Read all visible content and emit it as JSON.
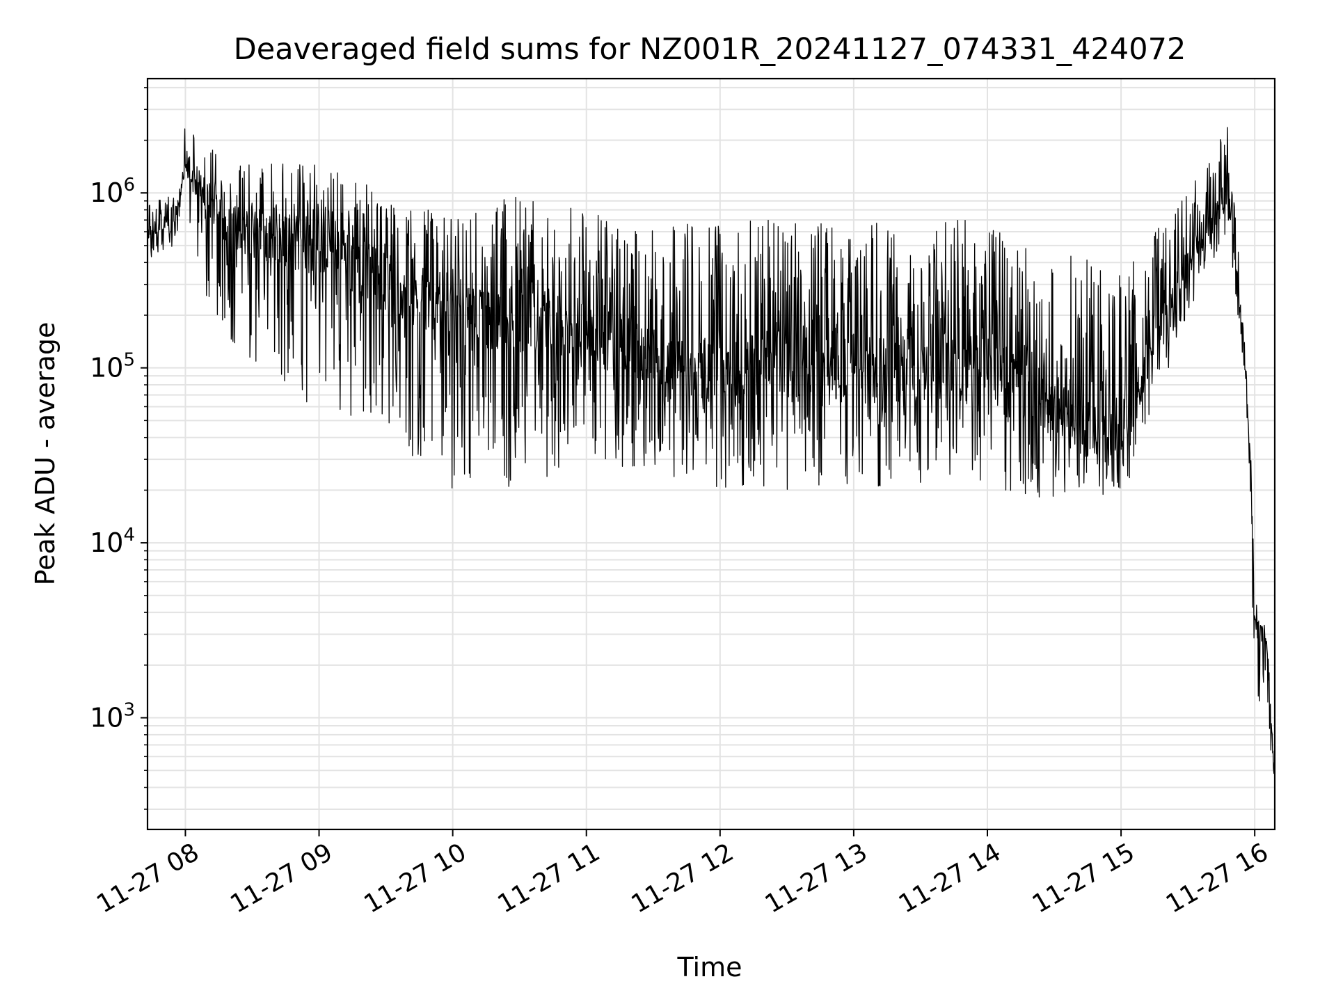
{
  "chart_data": {
    "type": "line",
    "title": "Deaveraged field sums for NZ001R_20241127_074331_424072",
    "xlabel": "Time",
    "ylabel": "Peak ADU - average",
    "yscale": "log",
    "ylim": [
      230,
      4500000
    ],
    "xlim": [
      "2024-11-27 07:43",
      "2024-11-27 16:09"
    ],
    "grid": true,
    "line_color": "#000000",
    "x_ticks": [
      {
        "t": "2024-11-27 08:00",
        "label": "11-27 08"
      },
      {
        "t": "2024-11-27 09:00",
        "label": "11-27 09"
      },
      {
        "t": "2024-11-27 10:00",
        "label": "11-27 10"
      },
      {
        "t": "2024-11-27 11:00",
        "label": "11-27 11"
      },
      {
        "t": "2024-11-27 12:00",
        "label": "11-27 12"
      },
      {
        "t": "2024-11-27 13:00",
        "label": "11-27 13"
      },
      {
        "t": "2024-11-27 14:00",
        "label": "11-27 14"
      },
      {
        "t": "2024-11-27 15:00",
        "label": "11-27 15"
      },
      {
        "t": "2024-11-27 16:00",
        "label": "11-27 16"
      }
    ],
    "y_ticks": [
      {
        "value": 1000,
        "base": "10",
        "exp": "3"
      },
      {
        "value": 10000,
        "base": "10",
        "exp": "4"
      },
      {
        "value": 100000,
        "base": "10",
        "exp": "5"
      },
      {
        "value": 1000000,
        "base": "10",
        "exp": "6"
      }
    ],
    "series": [
      {
        "envelope": [
          {
            "t": "2024-11-27 07:43",
            "base": 600000,
            "low": 420000,
            "high": 900000
          },
          {
            "t": "2024-11-27 07:55",
            "base": 650000,
            "low": 480000,
            "high": 1000000
          },
          {
            "t": "2024-11-27 08:00",
            "base": 1500000,
            "low": 900000,
            "high": 2600000
          },
          {
            "t": "2024-11-27 08:10",
            "base": 800000,
            "low": 200000,
            "high": 1800000
          },
          {
            "t": "2024-11-27 08:30",
            "base": 600000,
            "low": 80000,
            "high": 1500000
          },
          {
            "t": "2024-11-27 09:00",
            "base": 500000,
            "low": 60000,
            "high": 1500000
          },
          {
            "t": "2024-11-27 09:30",
            "base": 300000,
            "low": 40000,
            "high": 1000000
          },
          {
            "t": "2024-11-27 10:00",
            "base": 200000,
            "low": 20000,
            "high": 800000
          },
          {
            "t": "2024-11-27 10:30",
            "base": 200000,
            "low": 20000,
            "high": 1000000
          },
          {
            "t": "2024-11-27 11:00",
            "base": 150000,
            "low": 30000,
            "high": 800000
          },
          {
            "t": "2024-11-27 11:30",
            "base": 120000,
            "low": 25000,
            "high": 700000
          },
          {
            "t": "2024-11-27 12:00",
            "base": 90000,
            "low": 20000,
            "high": 700000
          },
          {
            "t": "2024-11-27 12:30",
            "base": 110000,
            "low": 20000,
            "high": 700000
          },
          {
            "t": "2024-11-27 13:00",
            "base": 100000,
            "low": 20000,
            "high": 700000
          },
          {
            "t": "2024-11-27 13:30",
            "base": 100000,
            "low": 20000,
            "high": 700000
          },
          {
            "t": "2024-11-27 14:00",
            "base": 110000,
            "low": 20000,
            "high": 700000
          },
          {
            "t": "2024-11-27 14:30",
            "base": 60000,
            "low": 17000,
            "high": 500000
          },
          {
            "t": "2024-11-27 15:00",
            "base": 35000,
            "low": 17000,
            "high": 350000
          },
          {
            "t": "2024-11-27 15:15",
            "base": 150000,
            "low": 60000,
            "high": 600000
          },
          {
            "t": "2024-11-27 15:30",
            "base": 400000,
            "low": 200000,
            "high": 1000000
          },
          {
            "t": "2024-11-27 15:48",
            "base": 1000000,
            "low": 600000,
            "high": 2400000
          },
          {
            "t": "2024-11-27 15:55",
            "base": 150000,
            "low": 100000,
            "high": 200000
          },
          {
            "t": "2024-11-27 15:58",
            "base": 30000,
            "low": 20000,
            "high": 40000
          },
          {
            "t": "2024-11-27 16:00",
            "base": 3500,
            "low": 1000,
            "high": 5000
          },
          {
            "t": "2024-11-27 16:05",
            "base": 3000,
            "low": 1500,
            "high": 4500
          },
          {
            "t": "2024-11-27 16:09",
            "base": 400,
            "low": 300,
            "high": 500
          }
        ]
      }
    ]
  }
}
